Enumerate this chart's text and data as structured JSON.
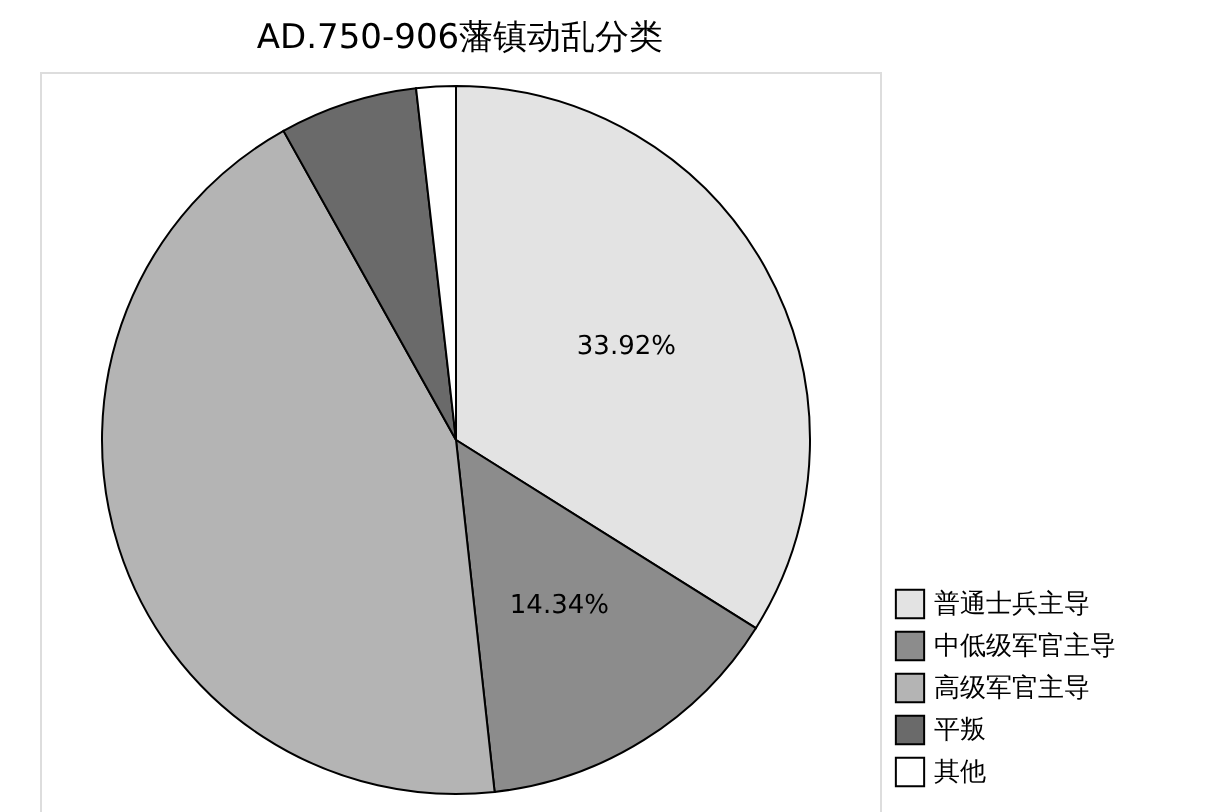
{
  "chart_data": {
    "type": "pie",
    "title": "AD.750-906藩镇动乱分类",
    "categories": [
      "普通士兵主导",
      "中低级军官主导",
      "高级军官主导",
      "平叛",
      "其他"
    ],
    "values": [
      33.92,
      14.34,
      43.64,
      6.3,
      1.8
    ],
    "colors": [
      "#e3e3e3",
      "#8c8c8c",
      "#b4b4b4",
      "#6a6a6a",
      "#ffffff"
    ],
    "value_labels": [
      "33.92%",
      "14.34%",
      null,
      null,
      null
    ],
    "legend": "bottom right"
  }
}
